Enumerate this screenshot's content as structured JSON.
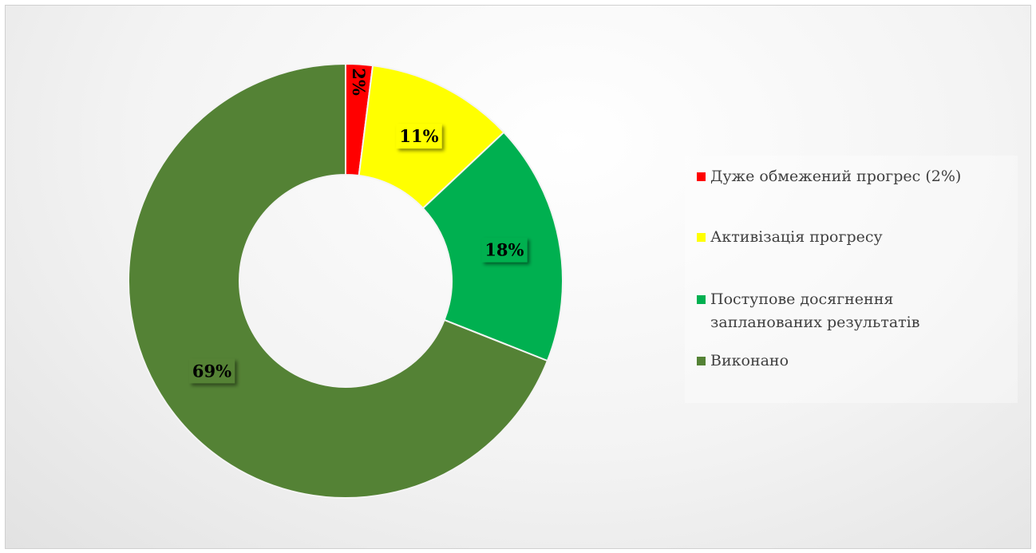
{
  "chart_data": {
    "type": "donut",
    "categories": [
      "Дуже обмежений прогрес (2%)",
      "Активізація прогресу",
      "Поступове досягнення запланованих результатів",
      "Виконано"
    ],
    "values": [
      2,
      11,
      18,
      69
    ],
    "value_labels": [
      "2%",
      "11%",
      "18%",
      "69%"
    ],
    "colors": [
      "#ff0000",
      "#ffff00",
      "#00b050",
      "#548235"
    ],
    "legend": "right"
  }
}
